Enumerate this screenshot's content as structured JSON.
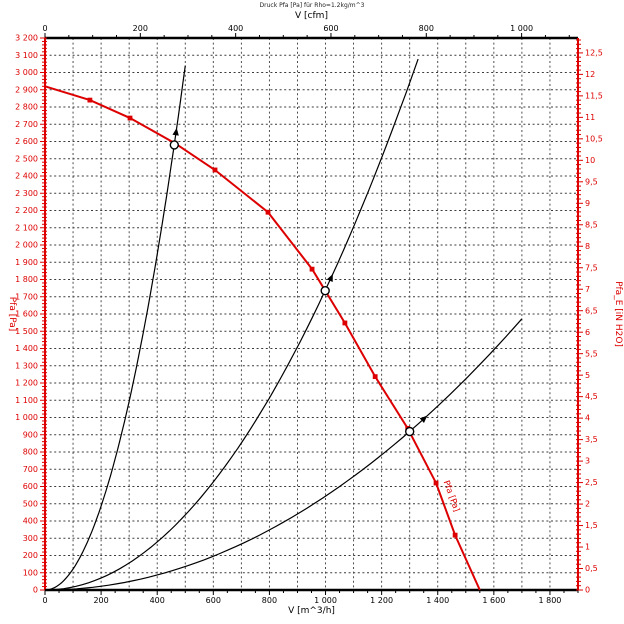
{
  "title": "Druck Pfa [Pa] für Rho=1.2kg/m^3",
  "colors": {
    "accent": "#dd0000",
    "axis": "#000000",
    "grid": "#3c3c3c",
    "background": "#ffffff"
  },
  "chart_data": {
    "type": "line",
    "title": "Druck Pfa [Pa] für Rho=1.2kg/m^3",
    "axes": {
      "bottom": {
        "label": "V [m^3/h]",
        "min": 0,
        "max": 1900,
        "major_tick": 200,
        "minor_tick": 50,
        "grid_step": 100,
        "tick_labels": [
          "0",
          "200",
          "400",
          "600",
          "800",
          "1 000",
          "1 200",
          "1 400",
          "1 600",
          "1 800"
        ]
      },
      "top": {
        "label": "V [cfm]",
        "min": 0,
        "max": 1118.3,
        "major_tick": 200,
        "minor_tick": 50,
        "tick_labels": [
          "0",
          "200",
          "400",
          "600",
          "800",
          "1 000"
        ]
      },
      "left": {
        "label": "Pfa [Pa]",
        "min": 0,
        "max": 3200,
        "major_tick": 100,
        "minor_tick": 20,
        "grid_step": 100
      },
      "right": {
        "label": "Pfa_E [iN H2O]",
        "min": 0,
        "max": 12.8468,
        "major_tick": 0.5,
        "minor_tick": 0.1
      }
    },
    "fan_curve": {
      "name": "Pfa [Pa]",
      "color": "#dd0000",
      "marker": "square",
      "points": [
        [
          0,
          2920
        ],
        [
          160,
          2840
        ],
        [
          303,
          2736
        ],
        [
          463,
          2590
        ],
        [
          606,
          2435
        ],
        [
          795,
          2190
        ],
        [
          952,
          1860
        ],
        [
          1069,
          1548
        ],
        [
          1177,
          1237
        ],
        [
          1293,
          937
        ],
        [
          1394,
          620
        ],
        [
          1462,
          318
        ],
        [
          1550,
          0
        ]
      ],
      "markers_on": [
        1,
        2,
        3,
        4,
        5,
        6,
        7,
        8,
        9,
        10,
        11
      ]
    },
    "system_curves": [
      {
        "name": "system-curve-1",
        "k": 0.01216,
        "v_end": 500
      },
      {
        "name": "system-curve-2",
        "k": 0.00174,
        "v_end": 1330
      },
      {
        "name": "system-curve-3",
        "k": 0.000544,
        "v_end": 1700
      }
    ],
    "operating_points": [
      [
        461,
        2580
      ],
      [
        999,
        1735
      ],
      [
        1300,
        919
      ]
    ],
    "curve_label": {
      "text": "Pfa [Pa]",
      "v": 1412,
      "p": 540,
      "angle_deg": 70
    },
    "grid": true,
    "legend": false
  }
}
